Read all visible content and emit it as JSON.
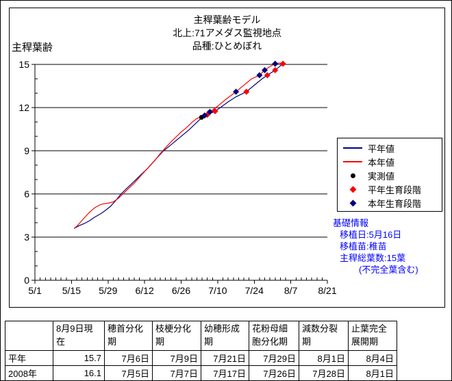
{
  "chart_data": {
    "type": "line",
    "title": "主稈葉齢モデル",
    "subtitle1": "北上:71アメダス監視地点",
    "subtitle2": "品種:ひとめぼれ",
    "ylabel": "主稈葉齢",
    "x_unit": "days_since_5/1",
    "xlim": [
      0,
      112
    ],
    "ylim": [
      0,
      15
    ],
    "xtick_labels": [
      "5/1",
      "5/15",
      "5/29",
      "6/12",
      "6/26",
      "7/10",
      "7/24",
      "8/7",
      "8/21"
    ],
    "xtick_days": [
      0,
      14,
      28,
      42,
      56,
      70,
      84,
      98,
      112
    ],
    "xtick_minor_step": 2,
    "ytick_labels": [
      "0",
      "3",
      "6",
      "9",
      "12",
      "15"
    ],
    "ytick_values": [
      0,
      3,
      6,
      9,
      12,
      15
    ],
    "ytick_minor_step": 1,
    "grid": "horizontal-major",
    "legend_position": "right",
    "series": [
      {
        "name": "平年値",
        "color": "#000080",
        "points": [
          [
            15,
            3.6
          ],
          [
            17,
            3.8
          ],
          [
            19,
            3.95
          ],
          [
            21,
            4.15
          ],
          [
            23,
            4.4
          ],
          [
            25,
            4.6
          ],
          [
            27,
            4.85
          ],
          [
            29,
            5.15
          ],
          [
            31,
            5.55
          ],
          [
            33,
            6.0
          ],
          [
            35,
            6.35
          ],
          [
            37,
            6.7
          ],
          [
            39,
            7.05
          ],
          [
            41,
            7.4
          ],
          [
            43,
            7.75
          ],
          [
            45,
            8.15
          ],
          [
            47,
            8.55
          ],
          [
            49,
            8.95
          ],
          [
            51,
            9.25
          ],
          [
            53,
            9.55
          ],
          [
            55,
            9.85
          ],
          [
            57,
            10.15
          ],
          [
            59,
            10.45
          ],
          [
            61,
            10.8
          ],
          [
            63,
            11.15
          ],
          [
            66,
            11.5
          ],
          [
            69,
            11.75
          ],
          [
            71,
            12.0
          ],
          [
            74,
            12.4
          ],
          [
            77,
            12.75
          ],
          [
            81,
            13.1
          ],
          [
            84,
            13.55
          ],
          [
            87,
            14.0
          ],
          [
            89,
            14.25
          ],
          [
            92,
            14.6
          ],
          [
            94,
            14.9
          ],
          [
            95.5,
            15.1
          ]
        ]
      },
      {
        "name": "本年値",
        "color": "#ff0000",
        "points": [
          [
            15,
            3.6
          ],
          [
            16,
            3.75
          ],
          [
            17,
            3.95
          ],
          [
            18,
            4.15
          ],
          [
            19,
            4.35
          ],
          [
            20,
            4.55
          ],
          [
            21,
            4.75
          ],
          [
            22,
            4.9
          ],
          [
            23,
            5.05
          ],
          [
            24,
            5.15
          ],
          [
            25,
            5.25
          ],
          [
            26,
            5.3
          ],
          [
            28,
            5.35
          ],
          [
            30,
            5.45
          ],
          [
            32,
            5.7
          ],
          [
            34,
            6.05
          ],
          [
            36,
            6.4
          ],
          [
            38,
            6.75
          ],
          [
            40,
            7.15
          ],
          [
            42,
            7.55
          ],
          [
            44,
            7.95
          ],
          [
            46,
            8.35
          ],
          [
            48,
            8.8
          ],
          [
            50,
            9.2
          ],
          [
            52,
            9.6
          ],
          [
            54,
            9.95
          ],
          [
            56,
            10.3
          ],
          [
            58,
            10.6
          ],
          [
            60,
            10.95
          ],
          [
            62,
            11.25
          ],
          [
            65,
            11.45
          ],
          [
            67,
            11.7
          ],
          [
            70,
            12.1
          ],
          [
            73,
            12.55
          ],
          [
            77,
            13.1
          ],
          [
            80,
            13.55
          ],
          [
            83,
            14.0
          ],
          [
            86,
            14.25
          ],
          [
            88,
            14.6
          ],
          [
            90,
            14.85
          ],
          [
            92,
            15.05
          ],
          [
            94,
            15.1
          ]
        ]
      }
    ],
    "markers": [
      {
        "name": "実測値",
        "shape": "circle",
        "color": "#000000",
        "points": [
          [
            63.8,
            11.32
          ]
        ]
      },
      {
        "name": "平年生育段階",
        "shape": "diamond",
        "color": "#ff0000",
        "points": [
          [
            66,
            11.5
          ],
          [
            69,
            11.75
          ],
          [
            81,
            13.1
          ],
          [
            89,
            14.25
          ],
          [
            92,
            14.6
          ],
          [
            95,
            15.05
          ]
        ]
      },
      {
        "name": "本年生育段階",
        "shape": "diamond",
        "color": "#000080",
        "points": [
          [
            65,
            11.45
          ],
          [
            67,
            11.7
          ],
          [
            77,
            13.1
          ],
          [
            86,
            14.25
          ],
          [
            88,
            14.6
          ],
          [
            92,
            15.05
          ]
        ]
      }
    ],
    "legend": [
      {
        "label": "平年値",
        "swatch": "line",
        "color": "#000080"
      },
      {
        "label": "本年値",
        "swatch": "line",
        "color": "#ff0000"
      },
      {
        "label": "実測値",
        "swatch": "circle",
        "color": "#000000"
      },
      {
        "label": "平年生育段階",
        "swatch": "diamond",
        "color": "#ff0000"
      },
      {
        "label": "本年生育段階",
        "swatch": "diamond",
        "color": "#000080"
      }
    ]
  },
  "info": {
    "title": "基礎情報",
    "transplant_date": "移植日:5月16日",
    "seedling_type": "移植苗:稚苗",
    "total_leaves": "主稈総葉数:15葉",
    "note": "(不完全葉含む)",
    "color": "#0000ff"
  },
  "table": {
    "columns": [
      "",
      "8月9日現\n在",
      "穂首分化\n期",
      "枝梗分化\n期",
      "幼穂形成\n期",
      "花粉母細\n胞分化期",
      "減数分裂\n期",
      "止葉完全\n展開期"
    ],
    "rows": [
      {
        "label": "平年",
        "values": [
          "15.7",
          "7月6日",
          "7月9日",
          "7月21日",
          "7月29日",
          "8月1日",
          "8月4日"
        ]
      },
      {
        "label": "2008年",
        "values": [
          "16.1",
          "7月5日",
          "7月7日",
          "7月17日",
          "7月26日",
          "7月28日",
          "8月1日"
        ]
      }
    ]
  }
}
